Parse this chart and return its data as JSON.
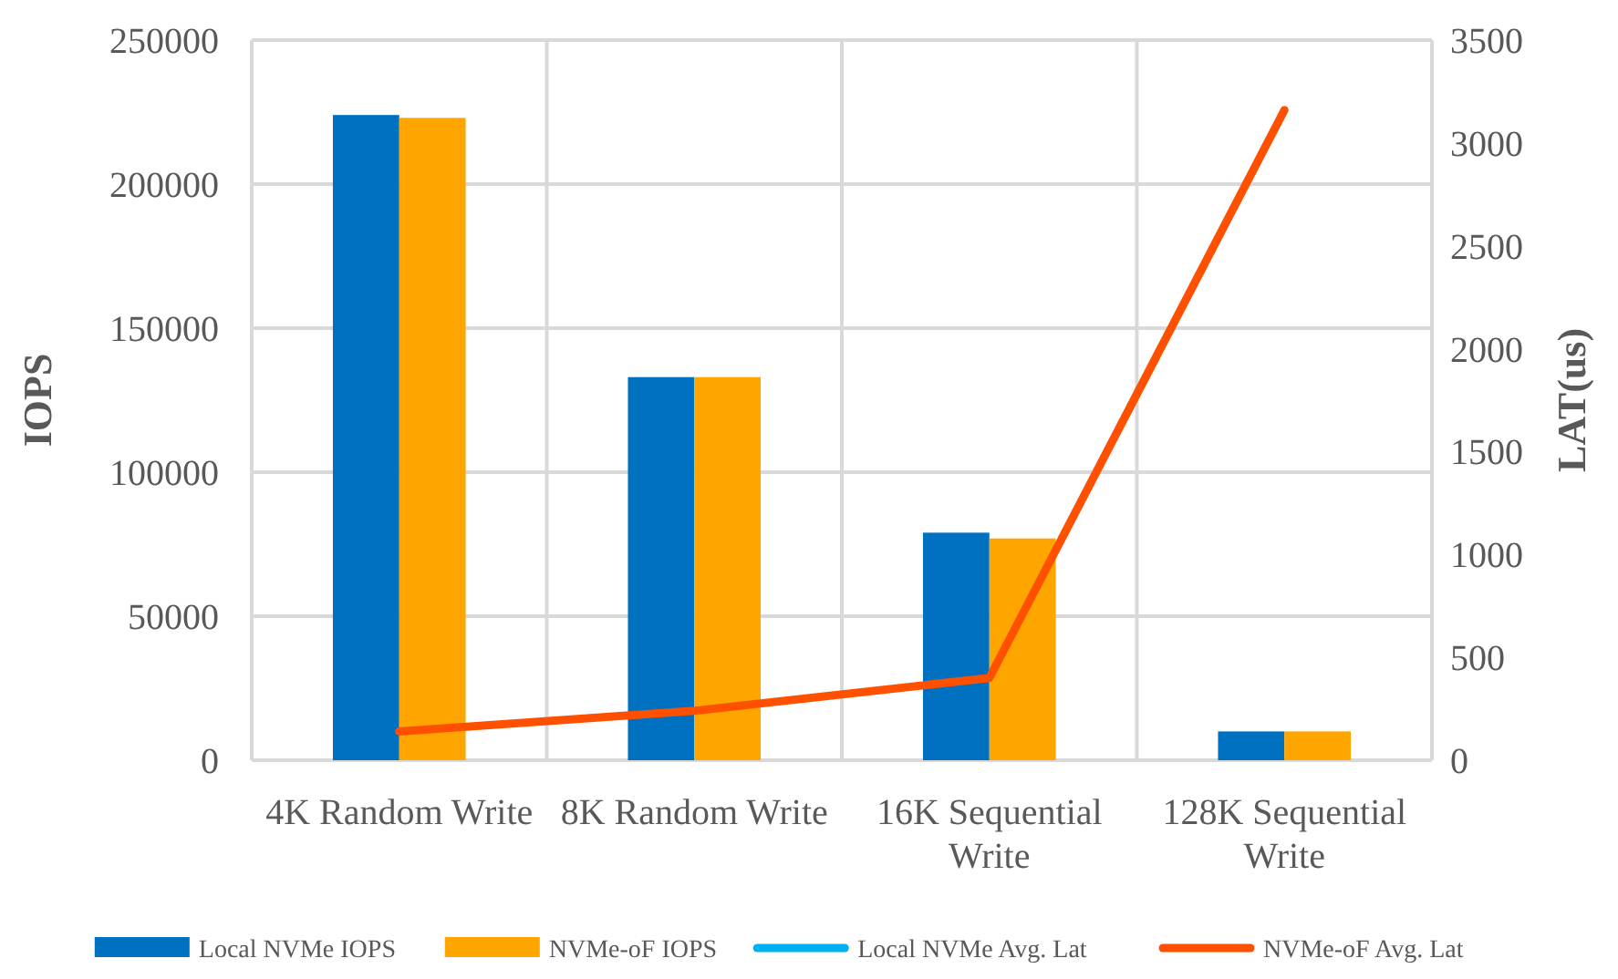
{
  "chart_data": {
    "type": "bar",
    "categories": [
      "4K Random Write",
      "8K Random Write",
      "16K Sequential Write",
      "128K Sequential Write"
    ],
    "ylabel": "IOPS",
    "y2label": "LAT(us)",
    "series": [
      {
        "name": "Local NVMe IOPS",
        "color": "#0070c0",
        "values": [
          224000,
          133000,
          79000,
          10000
        ]
      },
      {
        "name": "NVMe-oF IOPS",
        "color": "#ffa500",
        "values": [
          223000,
          133000,
          77000,
          10000
        ]
      },
      {
        "name": "Local NVMe Avg. Lat",
        "type": "line",
        "axis": "y2",
        "color": "#00b0f0",
        "values": [
          null,
          null,
          null,
          null
        ]
      },
      {
        "name": "NVMe-oF Avg. Lat",
        "type": "line",
        "axis": "y2",
        "color": "#ff5000",
        "values": [
          140,
          240,
          400,
          3160
        ]
      }
    ],
    "ylim": [
      0,
      250000
    ],
    "yticks": [
      0,
      50000,
      100000,
      150000,
      200000,
      250000
    ],
    "y2lim": [
      0,
      3500
    ],
    "y2ticks": [
      0,
      500,
      1000,
      1500,
      2000,
      2500,
      3000,
      3500
    ],
    "grid": true,
    "legend": "bottom"
  }
}
